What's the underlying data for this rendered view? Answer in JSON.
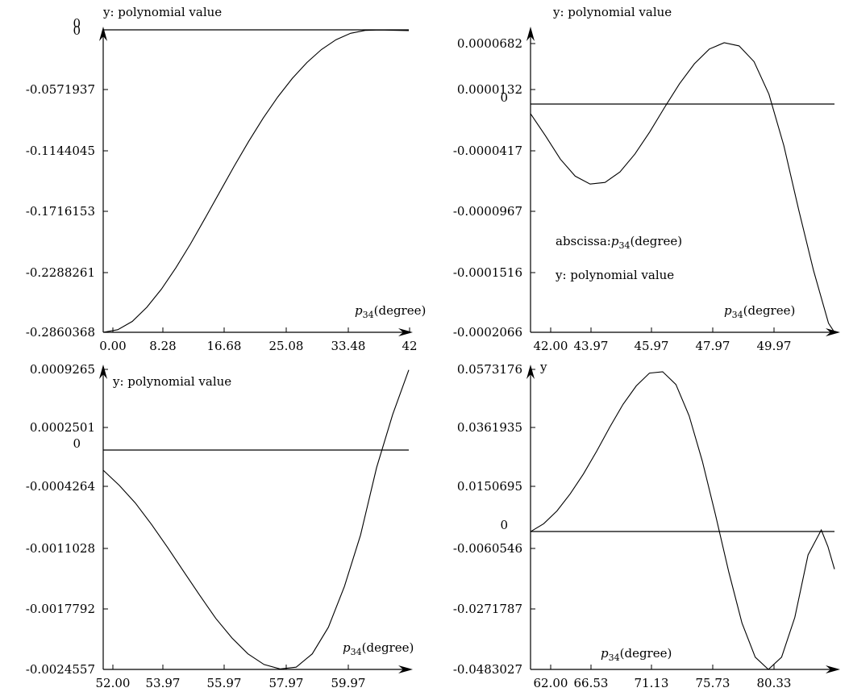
{
  "chart_data": [
    {
      "type": "line",
      "title": "",
      "ylabel": "y: polynomial value",
      "xlabel_prefix": "p",
      "xlabel_sub": "34",
      "xlabel_suffix": "(degree)",
      "xticks": [
        "0.00",
        "8.28",
        "16.68",
        "25.08",
        "33.48",
        "42"
      ],
      "yticks": [
        "-0.2860368",
        "-0.2288261",
        "-0.1716153",
        "-0.1144045",
        "-0.0571937",
        "0"
      ],
      "xlim": [
        0,
        42
      ],
      "ylim": [
        -0.2860368,
        0
      ],
      "series": [
        {
          "x": [
            0,
            2,
            4,
            6,
            8,
            10,
            12,
            14,
            16,
            18,
            20,
            22,
            24,
            26,
            28,
            30,
            32,
            34,
            36,
            38,
            40,
            42
          ],
          "y": [
            -0.286,
            -0.2836,
            -0.2757,
            -0.2623,
            -0.2451,
            -0.2248,
            -0.2022,
            -0.178,
            -0.1532,
            -0.1286,
            -0.1049,
            -0.0828,
            -0.0628,
            -0.0452,
            -0.0302,
            -0.0179,
            -0.0086,
            -0.0025,
            0.0002,
            0.0006,
            0.0003,
            0.0001
          ]
        }
      ]
    },
    {
      "type": "line",
      "title": "",
      "ylabel": "y: polynomial value",
      "xlabel_prefix": "p",
      "xlabel_sub": "34",
      "xlabel_suffix": "(degree)",
      "annotation_prefix": "abscissa:",
      "annotation_sub": "34",
      "annotation_suffix": "(degree)",
      "annotation2": "y: polynomial value",
      "xticks": [
        "42.00",
        "43.97",
        "45.97",
        "47.97",
        "49.97"
      ],
      "yticks": [
        "-0.0002066",
        "-0.0001516",
        "-0.0000967",
        "-0.0000417",
        "0.0000132",
        "0.0000682"
      ],
      "xlim": [
        42,
        52.2
      ],
      "ylim": [
        -0.0002066,
        6.82e-05
      ],
      "series": [
        {
          "x": [
            42.0,
            42.5,
            43.0,
            43.5,
            44.0,
            44.5,
            45.0,
            45.5,
            46.0,
            46.5,
            47.0,
            47.5,
            48.0,
            48.5,
            49.0,
            49.5,
            50.0,
            50.5,
            51.0,
            51.5,
            52.0,
            52.2
          ],
          "y": [
            1.5e-06,
            -1.95e-05,
            -4.18e-05,
            -5.8e-05,
            -6.55e-05,
            -6.4e-05,
            -5.4e-05,
            -3.7e-05,
            -1.6e-05,
            7.5e-06,
            3e-05,
            4.9e-05,
            6.3e-05,
            6.9e-05,
            6.6e-05,
            5.1e-05,
            2e-05,
            -2.9e-05,
            -9e-05,
            -0.000148,
            -0.000198,
            -0.0002066
          ]
        }
      ]
    },
    {
      "type": "line",
      "title": "",
      "ylabel": "y: polynomial value",
      "xlabel_prefix": "p",
      "xlabel_sub": "34",
      "xlabel_suffix": "(degree)",
      "xticks": [
        "52.00",
        "53.97",
        "55.97",
        "57.97",
        "59.97"
      ],
      "yticks": [
        "-0.0024557",
        "-0.0017792",
        "-0.0011028",
        "-0.0004264",
        "0.0002501",
        "0.0009265"
      ],
      "xlim": [
        52,
        61.5
      ],
      "ylim": [
        -0.0024557,
        0.0009265
      ],
      "series": [
        {
          "x": [
            52.0,
            52.5,
            53.0,
            53.5,
            54.0,
            54.5,
            55.0,
            55.5,
            56.0,
            56.5,
            57.0,
            57.5,
            58.0,
            58.5,
            59.0,
            59.5,
            60.0,
            60.5,
            61.0,
            61.5
          ],
          "y": [
            -0.00021,
            -0.00038,
            -0.00058,
            -0.00082,
            -0.00108,
            -0.00135,
            -0.00162,
            -0.00188,
            -0.0021,
            -0.00228,
            -0.0024,
            -0.00245,
            -0.00243,
            -0.00228,
            -0.00198,
            -0.00152,
            -0.00094,
            -0.00018,
            0.00042,
            0.00092
          ]
        }
      ]
    },
    {
      "type": "line",
      "title": "",
      "ylabel": "y",
      "xlabel_prefix": "p",
      "xlabel_sub": "34",
      "xlabel_suffix": "(degree)",
      "xticks": [
        "62.00",
        "66.53",
        "71.13",
        "75.73",
        "80.33"
      ],
      "yticks": [
        "-0.0483027",
        "-0.0271787",
        "-0.0060546",
        "0.0150695",
        "0.0361935",
        "0.0573176"
      ],
      "xlim": [
        62,
        85
      ],
      "ylim": [
        -0.0483027,
        0.0573176
      ],
      "series": [
        {
          "x": [
            62,
            63,
            64,
            65,
            66,
            67,
            68,
            69,
            70,
            71,
            72,
            73,
            74,
            75,
            76,
            77,
            78,
            79,
            80,
            81,
            82,
            83,
            84,
            84.5,
            85
          ],
          "y": [
            0.0002,
            0.003,
            0.0075,
            0.0135,
            0.0205,
            0.0285,
            0.037,
            0.045,
            0.0515,
            0.056,
            0.0565,
            0.052,
            0.041,
            0.025,
            0.006,
            -0.014,
            -0.032,
            -0.044,
            -0.0483,
            -0.044,
            -0.03,
            -0.008,
            0.0008,
            -0.005,
            -0.013
          ]
        }
      ]
    }
  ]
}
